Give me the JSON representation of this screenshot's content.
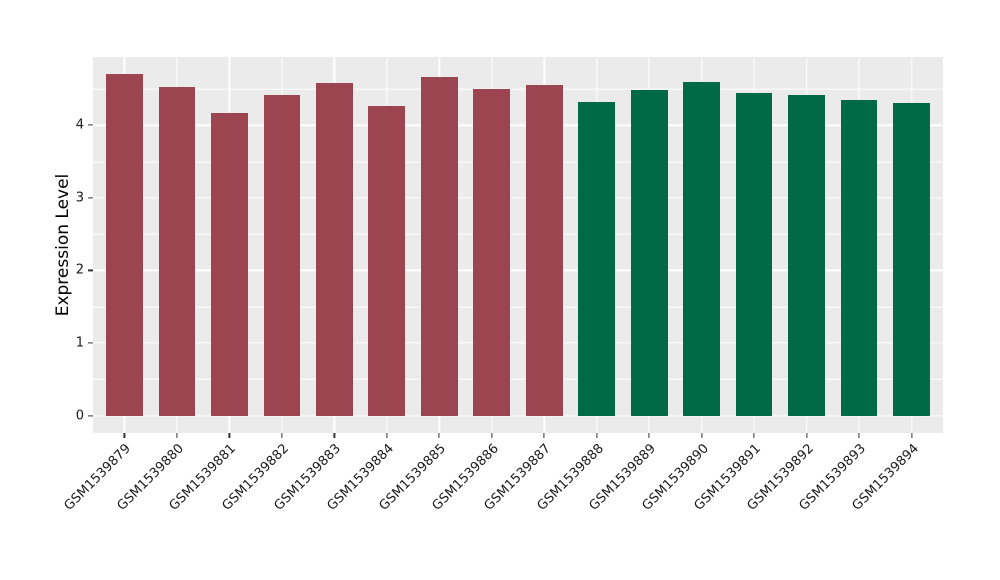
{
  "chart_data": {
    "type": "bar",
    "title": "",
    "xlabel": "",
    "ylabel": "Expression Level",
    "categories": [
      "GSM1539879",
      "GSM1539880",
      "GSM1539881",
      "GSM1539882",
      "GSM1539883",
      "GSM1539884",
      "GSM1539885",
      "GSM1539886",
      "GSM1539887",
      "GSM1539888",
      "GSM1539889",
      "GSM1539890",
      "GSM1539891",
      "GSM1539892",
      "GSM1539893",
      "GSM1539894"
    ],
    "values": [
      4.71,
      4.52,
      4.17,
      4.41,
      4.58,
      4.26,
      4.67,
      4.5,
      4.56,
      4.32,
      4.49,
      4.6,
      4.44,
      4.42,
      4.35,
      4.3
    ],
    "groups": [
      "group1",
      "group1",
      "group1",
      "group1",
      "group1",
      "group1",
      "group1",
      "group1",
      "group1",
      "group2",
      "group2",
      "group2",
      "group2",
      "group2",
      "group2",
      "group2"
    ],
    "group_colors": {
      "group1": "#9C4551",
      "group2": "#006946"
    },
    "yticks": [
      0,
      1,
      2,
      3,
      4
    ],
    "minor_gridlines_y": [
      0.5,
      1.5,
      2.5,
      3.5,
      4.5
    ],
    "ylim": [
      -0.24,
      4.94
    ],
    "x_tick_angle": -45,
    "legend": "none",
    "grid": "on",
    "panel_background": "#EBEBEB",
    "grid_color": "#FFFFFF"
  }
}
